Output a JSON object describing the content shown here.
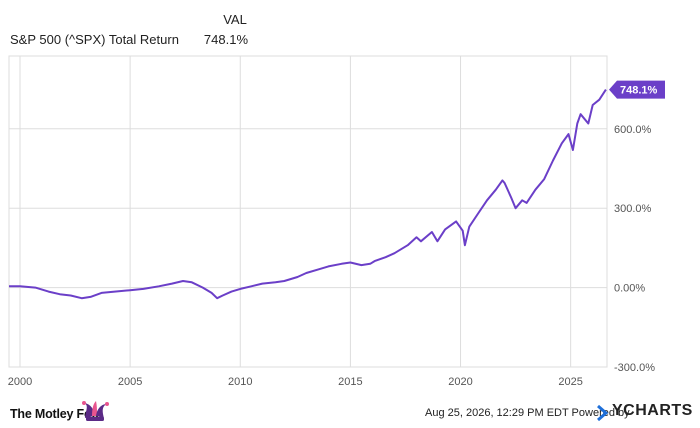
{
  "legend": {
    "column_header": "VAL",
    "series_name": "S&P 500 (^SPX) Total Return",
    "series_value": "748.1%"
  },
  "footer": {
    "brand": "The Motley Fool",
    "timestamp_note": "Aug 25, 2026, 12:29 PM EDT Powered by",
    "ycharts": "YCHARTS"
  },
  "colors": {
    "series": "#6b3fc8",
    "grid": "#dddddd",
    "jester_purple": "#5b2a86",
    "jester_pink": "#e8558e"
  },
  "chart_data": {
    "type": "line",
    "title": "",
    "xlabel": "",
    "ylabel": "",
    "x_ticks": [
      "2000",
      "2005",
      "2010",
      "2015",
      "2020",
      "2025"
    ],
    "y_ticks": [
      "-300.0%",
      "0.00%",
      "300.0%",
      "600.0%"
    ],
    "xlim": [
      1999.5,
      2026.65
    ],
    "ylim": [
      -300,
      875
    ],
    "end_label": "748.1%",
    "grid": true,
    "legend_position": "top-left",
    "series": [
      {
        "name": "S&P 500 (^SPX) Total Return",
        "x": [
          1999.5,
          2000.0,
          2000.7,
          2001.3,
          2001.8,
          2002.3,
          2002.8,
          2003.2,
          2003.7,
          2004.3,
          2005.0,
          2005.6,
          2006.3,
          2006.9,
          2007.4,
          2007.8,
          2008.3,
          2008.7,
          2008.95,
          2009.2,
          2009.6,
          2010.0,
          2010.5,
          2011.0,
          2011.6,
          2012.0,
          2012.6,
          2013.0,
          2013.6,
          2014.0,
          2014.6,
          2015.0,
          2015.5,
          2015.9,
          2016.1,
          2016.6,
          2017.0,
          2017.6,
          2018.0,
          2018.2,
          2018.7,
          2018.95,
          2019.3,
          2019.8,
          2020.1,
          2020.2,
          2020.4,
          2020.8,
          2021.2,
          2021.6,
          2021.9,
          2022.0,
          2022.3,
          2022.5,
          2022.8,
          2023.0,
          2023.4,
          2023.8,
          2024.2,
          2024.6,
          2024.9,
          2025.1,
          2025.3,
          2025.45,
          2025.8,
          2026.0,
          2026.3,
          2026.6
        ],
        "y": [
          5,
          5,
          0,
          -15,
          -25,
          -30,
          -40,
          -35,
          -20,
          -15,
          -10,
          -5,
          5,
          15,
          25,
          20,
          0,
          -20,
          -40,
          -30,
          -15,
          -5,
          5,
          15,
          20,
          25,
          40,
          55,
          70,
          80,
          90,
          95,
          85,
          90,
          100,
          115,
          130,
          160,
          190,
          175,
          210,
          175,
          220,
          250,
          215,
          160,
          230,
          280,
          330,
          370,
          405,
          395,
          340,
          300,
          330,
          320,
          370,
          410,
          480,
          545,
          580,
          520,
          620,
          655,
          620,
          690,
          710,
          748
        ]
      }
    ]
  }
}
